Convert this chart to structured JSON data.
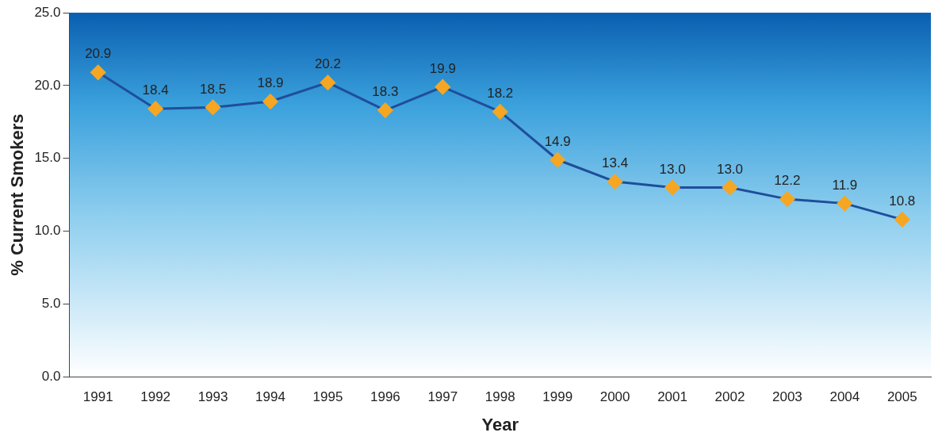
{
  "chart_data": {
    "type": "line",
    "xlabel": "Year",
    "ylabel": "% Current Smokers",
    "categories": [
      "1991",
      "1992",
      "1993",
      "1994",
      "1995",
      "1996",
      "1997",
      "1998",
      "1999",
      "2000",
      "2001",
      "2002",
      "2003",
      "2004",
      "2005"
    ],
    "series": [
      {
        "color": "#1f4e9a",
        "values": [
          20.9,
          18.4,
          18.5,
          18.9,
          20.2,
          18.3,
          19.9,
          18.2,
          14.9,
          13.4,
          13.0,
          13.0,
          12.2,
          11.9,
          10.8
        ],
        "colors": [
          "#f5a623",
          "#f5a623",
          "#f5a623",
          "#f5a623",
          "#f5a623",
          "#f5a623",
          "#f5a623",
          "#f5a623",
          "#f5a623",
          "#f5a623",
          "#f5a623",
          "#f5a623",
          "#f5a623",
          "#f5a623",
          "#f5a623"
        ],
        "value_labels": [
          "20.9",
          "18.4",
          "18.5",
          "18.9",
          "20.2",
          "18.3",
          "19.9",
          "18.2",
          "14.9",
          "13.4",
          "13.0",
          "13.0",
          "12.2",
          "11.9",
          "10.8"
        ]
      }
    ],
    "marker": "diamond",
    "line_style": "solid",
    "ylim": [
      0,
      25
    ],
    "yticks": [
      {
        "value": 0,
        "label": "0.0"
      },
      {
        "value": 5,
        "label": "5.0"
      },
      {
        "value": 10,
        "label": "10.0"
      },
      {
        "value": 15,
        "label": "15.0"
      },
      {
        "value": 20,
        "label": "20.0"
      },
      {
        "value": 25,
        "label": "25.0"
      }
    ],
    "grid": false,
    "legend": false
  }
}
